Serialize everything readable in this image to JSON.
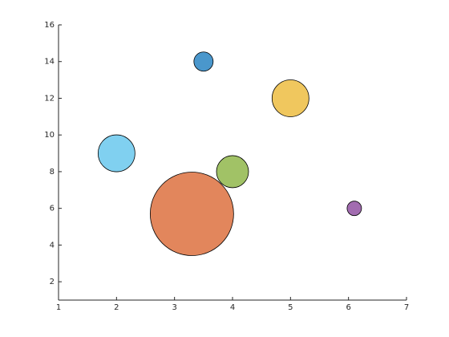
{
  "chart_data": {
    "type": "bubble",
    "x": [
      3.5,
      5,
      2,
      4,
      3.3,
      6.1
    ],
    "y": [
      14,
      12,
      9,
      8,
      5.7,
      6
    ],
    "sizes": [
      144,
      529,
      529,
      400,
      2704,
      81
    ],
    "colors": [
      "#4a97cc",
      "#f0c75e",
      "#80d0f0",
      "#a1c266",
      "#e2865c",
      "#a26cb0"
    ],
    "xlim": [
      1,
      7
    ],
    "xticks": [
      1,
      2,
      3,
      4,
      5,
      6,
      7
    ],
    "ylim": [
      1,
      16
    ],
    "yticks": [
      2,
      4,
      6,
      8,
      10,
      12,
      14,
      16
    ]
  }
}
